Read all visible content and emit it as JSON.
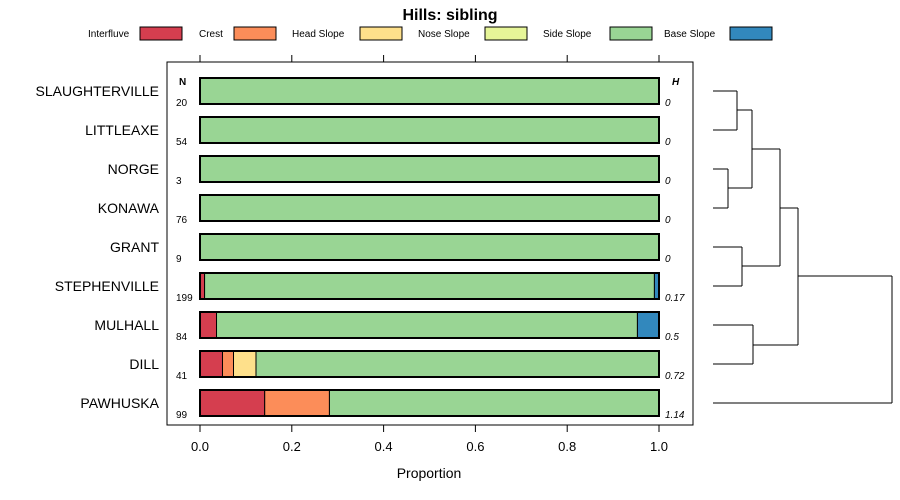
{
  "chart_data": {
    "type": "bar",
    "stacked": true,
    "orientation": "horizontal",
    "title": "Hills: sibling",
    "xlabel": "Proportion",
    "xlim": [
      0,
      1
    ],
    "xticks": [
      "0.0",
      "0.2",
      "0.4",
      "0.6",
      "0.8",
      "1.0"
    ],
    "xtick_values": [
      0,
      0.2,
      0.4,
      0.6,
      0.8,
      1.0
    ],
    "n_header": "N",
    "h_header": "H",
    "legend": {
      "placement": "top",
      "entries": [
        {
          "name": "Interfluve",
          "color": "#d53e4f"
        },
        {
          "name": "Crest",
          "color": "#fc8d59"
        },
        {
          "name": "Head Slope",
          "color": "#fee08b"
        },
        {
          "name": "Nose Slope",
          "color": "#e6f598"
        },
        {
          "name": "Side Slope",
          "color": "#99d594"
        },
        {
          "name": "Base Slope",
          "color": "#3288bd"
        }
      ]
    },
    "categories": [
      "SLAUGHTERVILLE",
      "LITTLEAXE",
      "NORGE",
      "KONAWA",
      "GRANT",
      "STEPHENVILLE",
      "MULHALL",
      "DILL",
      "PAWHUSKA"
    ],
    "n": [
      "20",
      "54",
      "3",
      "76",
      "9",
      "199",
      "84",
      "41",
      "99"
    ],
    "h": [
      "0",
      "0",
      "0",
      "0",
      "0",
      "0.17",
      "0.5",
      "0.72",
      "1.14"
    ],
    "series": [
      {
        "name": "Interfluve",
        "values": [
          0,
          0,
          0,
          0,
          0,
          0.01,
          0.036,
          0.049,
          0.141
        ]
      },
      {
        "name": "Crest",
        "values": [
          0,
          0,
          0,
          0,
          0,
          0,
          0,
          0.024,
          0.141
        ]
      },
      {
        "name": "Head Slope",
        "values": [
          0,
          0,
          0,
          0,
          0,
          0,
          0,
          0.049,
          0
        ]
      },
      {
        "name": "Nose Slope",
        "values": [
          0,
          0,
          0,
          0,
          0,
          0,
          0,
          0,
          0
        ]
      },
      {
        "name": "Side Slope",
        "values": [
          1,
          1,
          1,
          1,
          1,
          0.98,
          0.917,
          0.878,
          0.718
        ]
      },
      {
        "name": "Base Slope",
        "values": [
          0,
          0,
          0,
          0,
          0,
          0.01,
          0.047,
          0,
          0
        ]
      }
    ],
    "dendrogram": "hierarchical clustering of the nine series shown at right"
  }
}
